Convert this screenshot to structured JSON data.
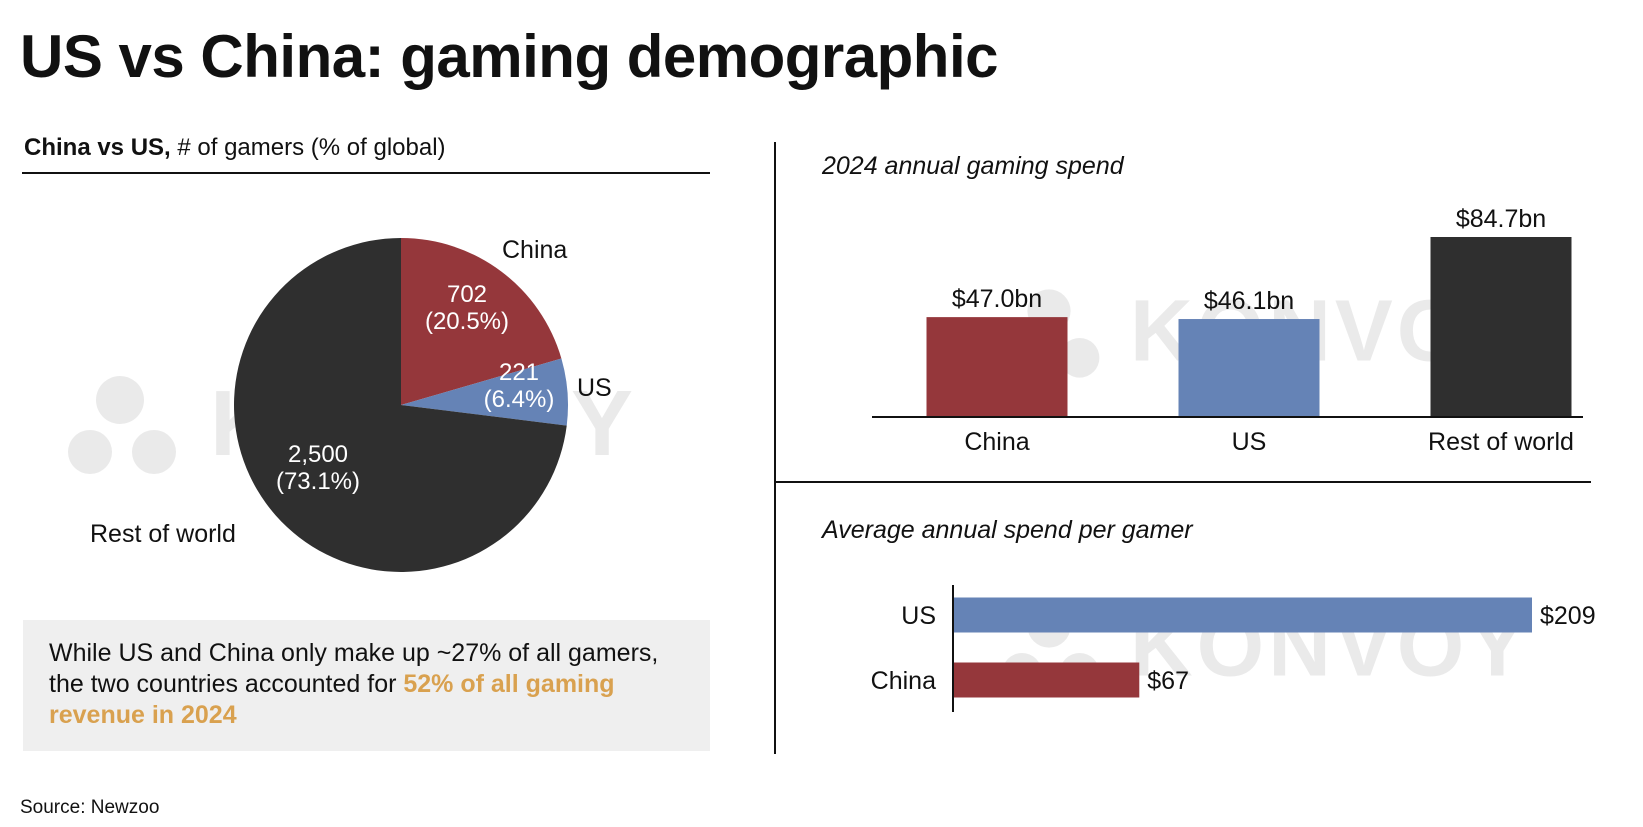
{
  "title": "US vs China: gaming demographic",
  "pie_header": {
    "bold": "China vs US,",
    "rest": " # of gamers (% of global)"
  },
  "callout": {
    "text": "While US and China only make up ~27% of all gamers, the two countries accounted for ",
    "highlight": "52% of all gaming revenue in 2024"
  },
  "source": "Source: Newzoo",
  "watermark": "KONVOY",
  "colors": {
    "china": "#95373b",
    "us": "#6583b6",
    "rest": "#2f2f2f",
    "highlight": "#d9a14f",
    "callout_bg": "#efefef"
  },
  "chart_data": [
    {
      "type": "pie",
      "title": "China vs US, # of gamers (% of global)",
      "slices": [
        {
          "name": "China",
          "value": 702,
          "label": "702",
          "pct": "(20.5%)"
        },
        {
          "name": "US",
          "value": 221,
          "label": "221",
          "pct": "(6.4%)"
        },
        {
          "name": "Rest of world",
          "value": 2500,
          "label": "2,500",
          "pct": "(73.1%)"
        }
      ]
    },
    {
      "type": "bar",
      "title": "2024 annual gaming spend",
      "categories": [
        "China",
        "US",
        "Rest of world"
      ],
      "values": [
        47.0,
        46.1,
        84.7
      ],
      "labels": [
        "$47.0bn",
        "$46.1bn",
        "$84.7bn"
      ],
      "unit": "$bn"
    },
    {
      "type": "bar",
      "orientation": "horizontal",
      "title": "Average annual spend per gamer",
      "categories": [
        "US",
        "China"
      ],
      "values": [
        209,
        67
      ],
      "labels": [
        "$209",
        "$67"
      ],
      "unit": "$"
    }
  ]
}
